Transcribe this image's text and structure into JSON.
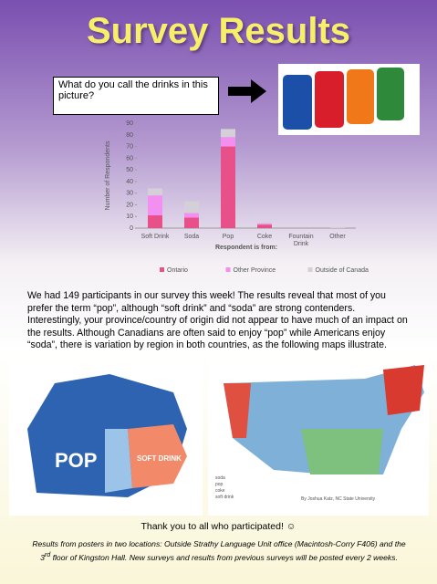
{
  "header": {
    "title": "Survey Results",
    "question": "What do you call the drinks in this picture?"
  },
  "chart_data": {
    "type": "stacked-bar",
    "y_label": "Number of Respondents",
    "x_label": "Respondent is from:",
    "categories": [
      "Soft Drink",
      "Soda",
      "Pop",
      "Coke",
      "Fountain Drink",
      "Other"
    ],
    "series": [
      {
        "name": "Ontario",
        "color": "#e8508a",
        "values": [
          11,
          9,
          70,
          3,
          0,
          0
        ]
      },
      {
        "name": "Other Province",
        "color": "#f28ff0",
        "values": [
          17,
          4,
          8,
          1,
          0,
          0
        ]
      },
      {
        "name": "Outside of Canada",
        "color": "#d4d0d8",
        "values": [
          6,
          10,
          7,
          1,
          0,
          1
        ]
      }
    ],
    "ylim": [
      0,
      90
    ],
    "yticks": [
      0,
      10,
      20,
      30,
      40,
      50,
      60,
      70,
      80,
      90
    ],
    "grid": false,
    "legend": "bottom"
  },
  "body": {
    "paragraph": "We had 149 participants in our survey this week! The results reveal that most of you prefer the term “pop”, although “soft drink” and “soda” are strong contenders. Interestingly, your province/country of origin did not appear to have much of an impact on the results. Although Canadians are often said to enjoy “pop” while Americans enjoy “soda”, there is variation by region in both countries, as the following maps illustrate.",
    "map_left": {
      "pop": "POP",
      "soft_drink": "SOFT DRINK"
    },
    "map_right": {
      "legend": [
        "soda",
        "pop",
        "coke",
        "soft drink"
      ],
      "credit": "By Joshua Katz, NC State University"
    },
    "thanks": "Thank you to all who participated! ☺",
    "footer": {
      "text1": "Results from posters in two locations: Outside Strathy Language Unit office (Macintosh-Corry F406) and the 3",
      "sup": "rd",
      "text2": " floor of Kingston Hall. New surveys and results from previous surveys will be posted every 2 weeks."
    }
  }
}
